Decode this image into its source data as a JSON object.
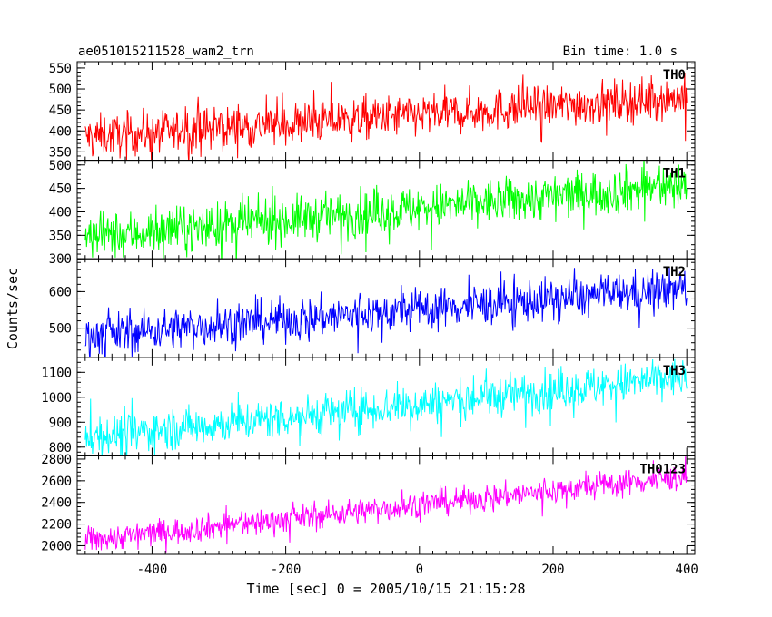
{
  "chart_data": {
    "type": "line",
    "title": "ae051015211528_wam2_trn",
    "bin_time": "Bin time: 1.0 s",
    "xlabel": "Time [sec] 0 = 2005/10/15 21:15:28",
    "ylabel": "Counts/sec",
    "xlim": [
      -512,
      412
    ],
    "x_ticks": [
      -400,
      -200,
      0,
      200,
      400
    ],
    "x_range": [
      -500,
      400
    ],
    "grid": false,
    "series": [
      {
        "name": "TH0",
        "color": "#ff0000",
        "ylim": [
          330,
          565
        ],
        "y_ticks": [
          350,
          400,
          450,
          500,
          550
        ],
        "trend": [
          385,
          480
        ],
        "noise": 25
      },
      {
        "name": "TH1",
        "color": "#00ff00",
        "ylim": [
          300,
          510
        ],
        "y_ticks": [
          300,
          350,
          400,
          450,
          500
        ],
        "trend": [
          345,
          458
        ],
        "noise": 24
      },
      {
        "name": "TH2",
        "color": "#0000ff",
        "ylim": [
          420,
          690
        ],
        "y_ticks": [
          500,
          600
        ],
        "trend": [
          480,
          608
        ],
        "noise": 28
      },
      {
        "name": "TH3",
        "color": "#00ffff",
        "ylim": [
          765,
          1160
        ],
        "y_ticks": [
          800,
          900,
          1000,
          1100
        ],
        "trend": [
          840,
          1080
        ],
        "noise": 40
      },
      {
        "name": "TH0123",
        "color": "#ff00ff",
        "ylim": [
          1920,
          2830
        ],
        "y_ticks": [
          2000,
          2200,
          2400,
          2600,
          2800
        ],
        "trend": [
          2050,
          2640
        ],
        "noise": 60
      }
    ]
  }
}
